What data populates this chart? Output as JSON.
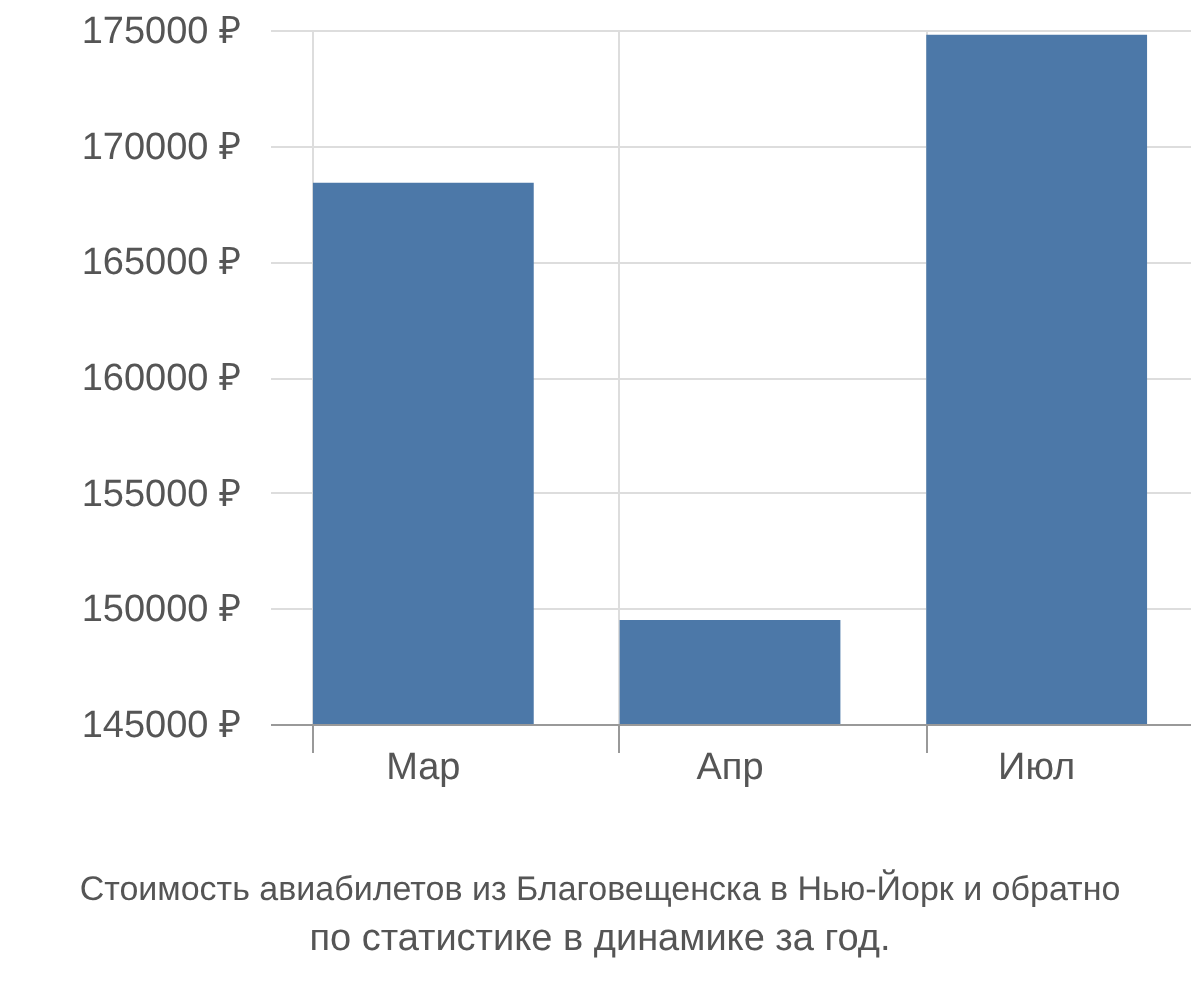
{
  "chart_data": {
    "type": "bar",
    "title": "Стоимость авиабилетов из Благовещенска в Нью-Йорк и обратно",
    "subtitle": "по статистике в динамике за год.",
    "categories": [
      "Мар",
      "Апр",
      "Июл"
    ],
    "values": [
      168400,
      149500,
      174800
    ],
    "color": "#4c78a8",
    "ylim": [
      145000,
      175000
    ],
    "yticks": [
      {
        "value": 145000,
        "label": "145000 ₽"
      },
      {
        "value": 150000,
        "label": "150000 ₽"
      },
      {
        "value": 155000,
        "label": "155000 ₽"
      },
      {
        "value": 160000,
        "label": "160000 ₽"
      },
      {
        "value": 165000,
        "label": "165000 ₽"
      },
      {
        "value": 170000,
        "label": "170000 ₽"
      },
      {
        "value": 175000,
        "label": "175000 ₽"
      }
    ],
    "grid": true
  }
}
